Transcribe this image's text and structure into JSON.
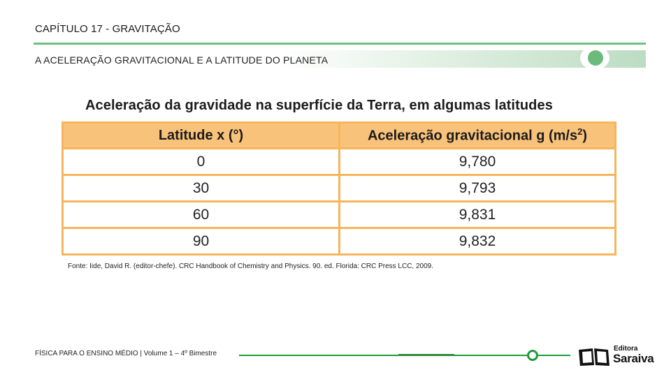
{
  "header": {
    "chapter": "CAPÍTULO 17 - GRAVITAÇÃO",
    "subtitle": "A ACELERAÇÃO GRAVITACIONAL E A LATITUDE DO PLANETA"
  },
  "table": {
    "title": "Aceleração da gravidade na superfície da Terra, em algumas latitudes",
    "col_latitude": "Latitude x (°)",
    "col_acceleration_base": "Aceleração gravitacional g (m/s",
    "col_acceleration_sup": "2",
    "col_acceleration_end": ")",
    "rows": [
      {
        "latitude": "0",
        "g": "9,780"
      },
      {
        "latitude": "30",
        "g": "9,793"
      },
      {
        "latitude": "60",
        "g": "9,831"
      },
      {
        "latitude": "90",
        "g": "9,832"
      }
    ]
  },
  "source": "Fonte: Iide, David R. (editor-chefe). CRC Handbook of Chemistry and Physics. 90. ed. Florida: CRC Press LCC, 2009.",
  "footer": {
    "text": "FÍSICA PARA O ENSINO MÉDIO  | Volume 1 – 4º Bimestre",
    "logo_small": "Editora",
    "logo_big": "Saraiva"
  },
  "colors": {
    "accent_green": "#6dbf7e",
    "table_orange": "#f7b55b",
    "header_orange": "#f9c27a"
  }
}
